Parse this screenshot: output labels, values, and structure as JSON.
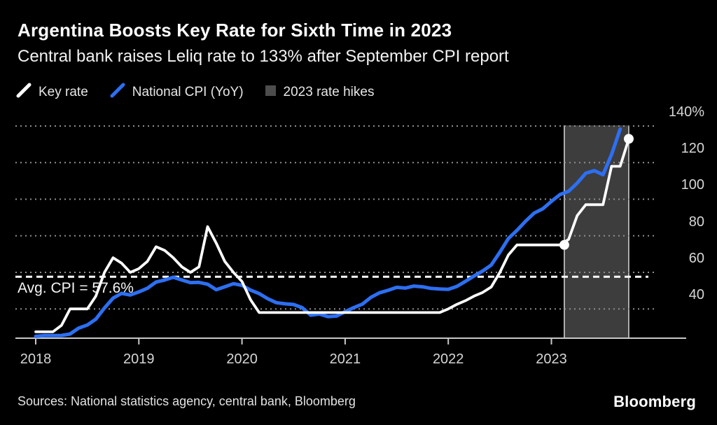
{
  "header": {
    "title": "Argentina Boosts Key Rate for Sixth Time in 2023",
    "subtitle": "Central bank raises Leliq rate to 133% after September CPI report"
  },
  "legend": {
    "items": [
      {
        "label": "Key rate",
        "swatch": "line",
        "color": "#ffffff"
      },
      {
        "label": "National CPI (YoY)",
        "swatch": "line",
        "color": "#2d6ff2"
      },
      {
        "label": "2023 rate hikes",
        "swatch": "box",
        "color": "#4d4d4d"
      }
    ]
  },
  "annotation": {
    "avg_label": "Avg. CPI = 57.6%"
  },
  "footer": {
    "sources": "Sources: National statistics agency, central bank, Bloomberg",
    "brand": "Bloomberg"
  },
  "colors": {
    "background": "#000000",
    "key_rate": "#ffffff",
    "cpi": "#2d6ff2",
    "band_fill": "#3d3d3d",
    "band_border": "#cfcfcf",
    "grid": "#8f8f8f",
    "axis": "#c8c8c8",
    "avg_line": "#ffffff"
  },
  "chart_data": {
    "type": "line",
    "title": "Argentina Boosts Key Rate for Sixth Time in 2023",
    "subtitle": "Central bank raises Leliq rate to 133% after September CPI report",
    "x_axis": {
      "ticks": [
        2018,
        2019,
        2020,
        2021,
        2022,
        2023
      ],
      "unit": "year"
    },
    "y_axis": {
      "ticks": [
        40,
        60,
        80,
        100,
        120,
        140
      ],
      "top_tick_label": "140%",
      "unit": "percent",
      "range_shown": [
        24,
        142
      ]
    },
    "grid": "horizontal-dotted",
    "legend_position": "top-left",
    "avg_line": {
      "label": "Avg. CPI = 57.6%",
      "value": 57.6,
      "style": "dashed"
    },
    "band": {
      "label": "2023 rate hikes",
      "x_start": 2023.125,
      "x_end": 2023.75
    },
    "series": [
      {
        "name": "National CPI (YoY)",
        "color": "#2d6ff2",
        "width": 5,
        "points": [
          [
            2018.0,
            25.0
          ],
          [
            2018.083,
            25.4
          ],
          [
            2018.167,
            25.4
          ],
          [
            2018.25,
            25.5
          ],
          [
            2018.333,
            26.3
          ],
          [
            2018.417,
            29.5
          ],
          [
            2018.5,
            31.2
          ],
          [
            2018.583,
            34.4
          ],
          [
            2018.667,
            40.5
          ],
          [
            2018.75,
            45.9
          ],
          [
            2018.833,
            48.5
          ],
          [
            2018.917,
            47.6
          ],
          [
            2019.0,
            49.3
          ],
          [
            2019.083,
            51.3
          ],
          [
            2019.167,
            54.7
          ],
          [
            2019.25,
            55.8
          ],
          [
            2019.333,
            57.3
          ],
          [
            2019.417,
            55.8
          ],
          [
            2019.5,
            54.4
          ],
          [
            2019.583,
            54.5
          ],
          [
            2019.667,
            53.5
          ],
          [
            2019.75,
            50.5
          ],
          [
            2019.833,
            52.1
          ],
          [
            2019.917,
            53.8
          ],
          [
            2020.0,
            52.9
          ],
          [
            2020.083,
            50.3
          ],
          [
            2020.167,
            48.4
          ],
          [
            2020.25,
            45.6
          ],
          [
            2020.333,
            43.4
          ],
          [
            2020.417,
            42.8
          ],
          [
            2020.5,
            42.4
          ],
          [
            2020.583,
            40.7
          ],
          [
            2020.667,
            36.6
          ],
          [
            2020.75,
            37.2
          ],
          [
            2020.833,
            35.8
          ],
          [
            2020.917,
            36.1
          ],
          [
            2021.0,
            38.5
          ],
          [
            2021.083,
            40.7
          ],
          [
            2021.167,
            42.6
          ],
          [
            2021.25,
            46.3
          ],
          [
            2021.333,
            48.8
          ],
          [
            2021.417,
            50.2
          ],
          [
            2021.5,
            51.8
          ],
          [
            2021.583,
            51.4
          ],
          [
            2021.667,
            52.5
          ],
          [
            2021.75,
            52.1
          ],
          [
            2021.833,
            51.2
          ],
          [
            2021.917,
            50.9
          ],
          [
            2022.0,
            50.7
          ],
          [
            2022.083,
            52.3
          ],
          [
            2022.167,
            55.1
          ],
          [
            2022.25,
            58.0
          ],
          [
            2022.333,
            60.7
          ],
          [
            2022.417,
            64.0
          ],
          [
            2022.5,
            71.0
          ],
          [
            2022.583,
            78.5
          ],
          [
            2022.667,
            83.0
          ],
          [
            2022.75,
            88.0
          ],
          [
            2022.833,
            92.4
          ],
          [
            2022.917,
            94.8
          ],
          [
            2023.0,
            98.8
          ],
          [
            2023.083,
            102.5
          ],
          [
            2023.167,
            104.3
          ],
          [
            2023.25,
            108.8
          ],
          [
            2023.333,
            114.2
          ],
          [
            2023.417,
            115.6
          ],
          [
            2023.5,
            113.4
          ],
          [
            2023.583,
            124.4
          ],
          [
            2023.667,
            138.3
          ]
        ]
      },
      {
        "name": "Key rate",
        "color": "#ffffff",
        "width": 3.8,
        "markers": [
          [
            2023.125,
            75
          ],
          [
            2023.75,
            133
          ]
        ],
        "points": [
          [
            2018.0,
            27.5
          ],
          [
            2018.083,
            27.5
          ],
          [
            2018.167,
            27.5
          ],
          [
            2018.25,
            31.0
          ],
          [
            2018.333,
            40.0
          ],
          [
            2018.417,
            40.0
          ],
          [
            2018.5,
            40.0
          ],
          [
            2018.583,
            47.0
          ],
          [
            2018.667,
            60.0
          ],
          [
            2018.75,
            68.0
          ],
          [
            2018.833,
            65.0
          ],
          [
            2018.917,
            60.0
          ],
          [
            2019.0,
            62.0
          ],
          [
            2019.083,
            66.0
          ],
          [
            2019.167,
            74.0
          ],
          [
            2019.25,
            72.0
          ],
          [
            2019.333,
            68.0
          ],
          [
            2019.417,
            63.0
          ],
          [
            2019.5,
            60.0
          ],
          [
            2019.583,
            63.0
          ],
          [
            2019.667,
            85.0
          ],
          [
            2019.75,
            76.0
          ],
          [
            2019.833,
            66.0
          ],
          [
            2019.917,
            60.0
          ],
          [
            2020.0,
            55.0
          ],
          [
            2020.083,
            45.0
          ],
          [
            2020.167,
            38.0
          ],
          [
            2020.25,
            38.0
          ],
          [
            2020.333,
            38.0
          ],
          [
            2020.417,
            38.0
          ],
          [
            2020.5,
            38.0
          ],
          [
            2020.583,
            38.0
          ],
          [
            2020.667,
            38.0
          ],
          [
            2020.75,
            38.0
          ],
          [
            2020.833,
            38.0
          ],
          [
            2020.917,
            38.0
          ],
          [
            2021.0,
            38.0
          ],
          [
            2021.083,
            38.0
          ],
          [
            2021.167,
            38.0
          ],
          [
            2021.25,
            38.0
          ],
          [
            2021.333,
            38.0
          ],
          [
            2021.417,
            38.0
          ],
          [
            2021.5,
            38.0
          ],
          [
            2021.583,
            38.0
          ],
          [
            2021.667,
            38.0
          ],
          [
            2021.75,
            38.0
          ],
          [
            2021.833,
            38.0
          ],
          [
            2021.917,
            38.0
          ],
          [
            2022.0,
            40.0
          ],
          [
            2022.083,
            42.5
          ],
          [
            2022.167,
            44.5
          ],
          [
            2022.25,
            47.0
          ],
          [
            2022.333,
            49.0
          ],
          [
            2022.417,
            52.0
          ],
          [
            2022.5,
            60.0
          ],
          [
            2022.583,
            69.5
          ],
          [
            2022.667,
            75.0
          ],
          [
            2022.75,
            75.0
          ],
          [
            2022.833,
            75.0
          ],
          [
            2022.917,
            75.0
          ],
          [
            2023.0,
            75.0
          ],
          [
            2023.083,
            75.0
          ],
          [
            2023.167,
            78.0
          ],
          [
            2023.25,
            91.0
          ],
          [
            2023.333,
            97.0
          ],
          [
            2023.417,
            97.0
          ],
          [
            2023.5,
            97.0
          ],
          [
            2023.583,
            118.0
          ],
          [
            2023.667,
            118.0
          ],
          [
            2023.75,
            133.0
          ]
        ]
      }
    ]
  }
}
